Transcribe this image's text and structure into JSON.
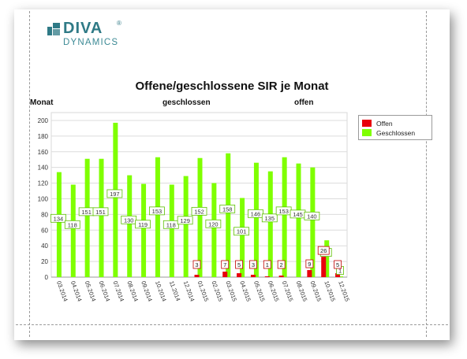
{
  "brand": {
    "word1": "DIVA",
    "reg": "®",
    "word2": "DYNAMICS",
    "color": "#2f7a86"
  },
  "headers": {
    "month": "Monat",
    "closed": "geschlossen",
    "open": "offen"
  },
  "colors": {
    "open": "#e8000d",
    "closed": "#7fff00",
    "closed_border": "#5cc000",
    "open_border": "#c00000"
  },
  "chart_data": {
    "type": "bar",
    "title": "Offene/geschlossene SIR je Monat",
    "categories": [
      "03.2014",
      "04.2014",
      "05.2014",
      "06.2014",
      "07.2014",
      "08.2014",
      "09.2014",
      "10.2014",
      "11.2014",
      "12.2014",
      "01.2015",
      "02.2015",
      "03.2015",
      "04.2015",
      "05.2015",
      "06.2015",
      "07.2015",
      "08.2015",
      "09.2015",
      "10.2015",
      "12.2015"
    ],
    "series": [
      {
        "name": "Offen",
        "values": [
          0,
          0,
          0,
          0,
          0,
          0,
          0,
          0,
          0,
          0,
          3,
          0,
          7,
          5,
          3,
          1,
          2,
          0,
          9,
          26,
          5
        ]
      },
      {
        "name": "Geschlossen",
        "values": [
          134,
          118,
          151,
          151,
          197,
          130,
          119,
          153,
          118,
          129,
          152,
          120,
          158,
          101,
          146,
          135,
          153,
          145,
          140,
          47,
          1
        ]
      }
    ],
    "ylim": [
      0,
      210
    ],
    "yticks": [
      0,
      20,
      40,
      60,
      80,
      100,
      120,
      140,
      160,
      180,
      200
    ],
    "grid": true,
    "legend_position": "right"
  }
}
